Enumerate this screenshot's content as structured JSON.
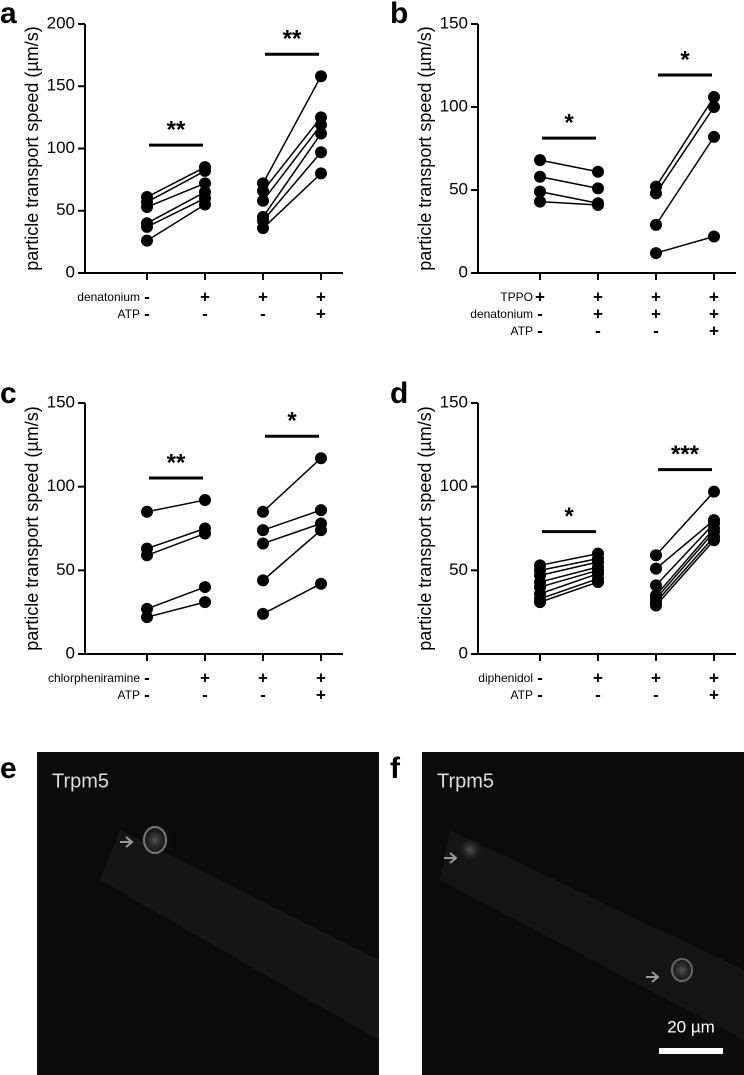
{
  "chart_data": [
    {
      "type": "paired",
      "panel": "a",
      "ylabel": "particle transport speed (µm/s)",
      "ylim": [
        0,
        200
      ],
      "yticks": [
        0,
        50,
        100,
        150,
        200
      ],
      "conditions": [
        {
          "name": "denatonium",
          "signs": [
            "-",
            "+",
            "+",
            "+"
          ]
        },
        {
          "name": "ATP",
          "signs": [
            "-",
            "-",
            "-",
            "+"
          ]
        }
      ],
      "groups": [
        {
          "significance": "**",
          "before": [
            61,
            57,
            53,
            40,
            37,
            26
          ],
          "after": [
            85,
            82,
            72,
            65,
            60,
            55
          ]
        },
        {
          "significance": "**",
          "before": [
            72,
            66,
            58,
            45,
            42,
            36
          ],
          "after": [
            158,
            125,
            119,
            112,
            97,
            80
          ]
        }
      ]
    },
    {
      "type": "paired",
      "panel": "b",
      "ylabel": "particle transport speed (µm/s)",
      "ylim": [
        0,
        150
      ],
      "yticks": [
        0,
        50,
        100,
        150
      ],
      "conditions": [
        {
          "name": "TPPO",
          "signs": [
            "+",
            "+",
            "+",
            "+"
          ]
        },
        {
          "name": "denatonium",
          "signs": [
            "-",
            "+",
            "+",
            "+"
          ]
        },
        {
          "name": "ATP",
          "signs": [
            "-",
            "-",
            "-",
            "+"
          ]
        }
      ],
      "groups": [
        {
          "significance": "*",
          "before": [
            68,
            58,
            49,
            43
          ],
          "after": [
            61,
            51,
            42,
            41
          ]
        },
        {
          "significance": "*",
          "before": [
            52,
            48,
            29,
            12
          ],
          "after": [
            106,
            100,
            82,
            22
          ]
        }
      ]
    },
    {
      "type": "paired",
      "panel": "c",
      "ylabel": "particle transport speed (µm/s)",
      "ylim": [
        0,
        150
      ],
      "yticks": [
        0,
        50,
        100,
        150
      ],
      "conditions": [
        {
          "name": "chlorpheniramine",
          "signs": [
            "-",
            "+",
            "+",
            "+"
          ]
        },
        {
          "name": "ATP",
          "signs": [
            "-",
            "-",
            "-",
            "+"
          ]
        }
      ],
      "groups": [
        {
          "significance": "**",
          "before": [
            85,
            63,
            59,
            27,
            22
          ],
          "after": [
            92,
            75,
            72,
            40,
            31
          ]
        },
        {
          "significance": "*",
          "before": [
            85,
            74,
            66,
            44,
            24
          ],
          "after": [
            117,
            86,
            78,
            74,
            42
          ]
        }
      ]
    },
    {
      "type": "paired",
      "panel": "d",
      "ylabel": "particle transport speed (µm/s)",
      "ylim": [
        0,
        150
      ],
      "yticks": [
        0,
        50,
        100,
        150
      ],
      "conditions": [
        {
          "name": "diphenidol",
          "signs": [
            "-",
            "+",
            "+",
            "+"
          ]
        },
        {
          "name": "ATP",
          "signs": [
            "-",
            "-",
            "-",
            "+"
          ]
        }
      ],
      "groups": [
        {
          "significance": "*",
          "before": [
            53,
            50,
            47,
            43,
            40,
            36,
            33,
            31
          ],
          "after": [
            60,
            57,
            55,
            52,
            50,
            48,
            45,
            43
          ]
        },
        {
          "significance": "***",
          "before": [
            59,
            51,
            41,
            35,
            33,
            31,
            29
          ],
          "after": [
            97,
            80,
            78,
            75,
            73,
            70,
            68
          ]
        }
      ]
    }
  ],
  "images": [
    {
      "panel": "e",
      "caption": "Trpm5"
    },
    {
      "panel": "f",
      "caption": "Trpm5",
      "scale_bar": "20 µm"
    }
  ]
}
